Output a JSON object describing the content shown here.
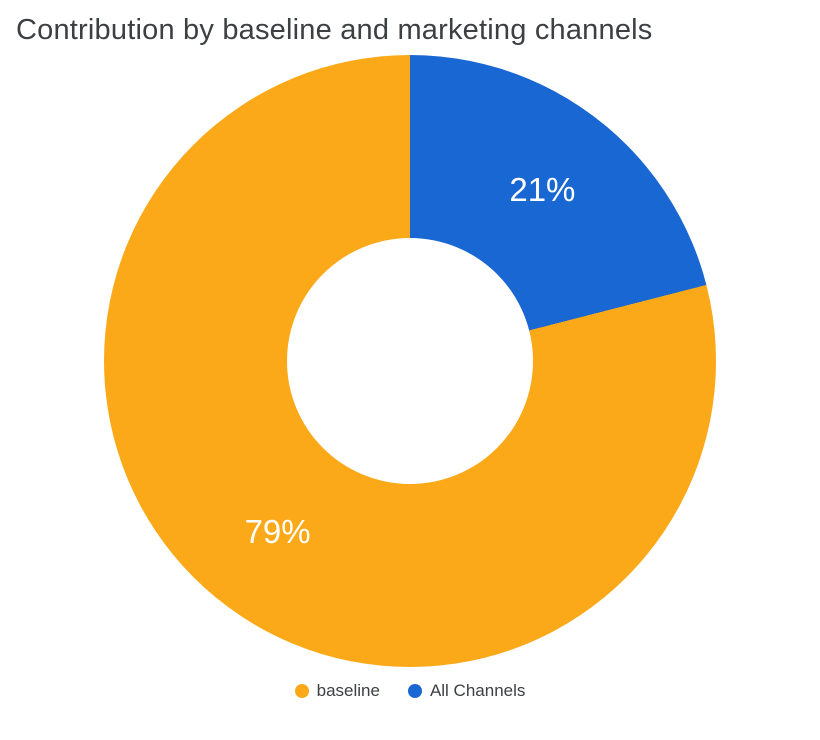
{
  "chart_data": {
    "type": "pie",
    "title": "Contribution by baseline and marketing channels",
    "donut": true,
    "pie_hole": 0.4,
    "rotation": "first slice starts at 12 o'clock, drawn clockwise",
    "slice_text_color": "#FFFFFF",
    "slices": [
      {
        "label": "All Channels",
        "value": 21,
        "display_label": "21%",
        "color": "#1967D2"
      },
      {
        "label": "baseline",
        "value": 79,
        "display_label": "79%",
        "color": "#FBA919"
      }
    ],
    "legend": {
      "position": "bottom",
      "items": [
        {
          "label": "baseline",
          "color": "#FBA919"
        },
        {
          "label": "All Channels",
          "color": "#1967D2"
        }
      ]
    }
  }
}
